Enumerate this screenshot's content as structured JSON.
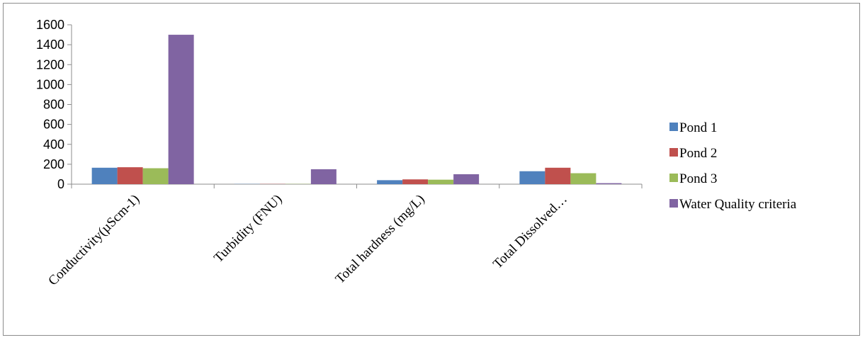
{
  "chart_data": {
    "type": "bar",
    "title": "",
    "xlabel": "",
    "ylabel": "",
    "ylim": [
      0,
      1600
    ],
    "yticks": [
      0,
      200,
      400,
      600,
      800,
      1000,
      1200,
      1400,
      1600
    ],
    "ytick_labels": [
      "0",
      "200",
      "400",
      "600",
      "800",
      "1000",
      "1200",
      "1400",
      "1600"
    ],
    "categories": [
      "Conductivity(µScm-1)",
      "Turbidity (FNU)",
      "Total hardness (mg/L)",
      "Total Dissolved…"
    ],
    "series": [
      {
        "name": "Pond 1",
        "color": "#4F81BD",
        "values": [
          165,
          2,
          40,
          130
        ]
      },
      {
        "name": "Pond 2",
        "color": "#C0504D",
        "values": [
          170,
          2,
          48,
          165
        ]
      },
      {
        "name": "Pond 3",
        "color": "#9BBB59",
        "values": [
          160,
          2,
          45,
          110
        ]
      },
      {
        "name": "Water Quality criteria",
        "color": "#8064A2",
        "values": [
          1500,
          150,
          100,
          10
        ]
      }
    ],
    "grid": false,
    "legend_position": "right"
  }
}
